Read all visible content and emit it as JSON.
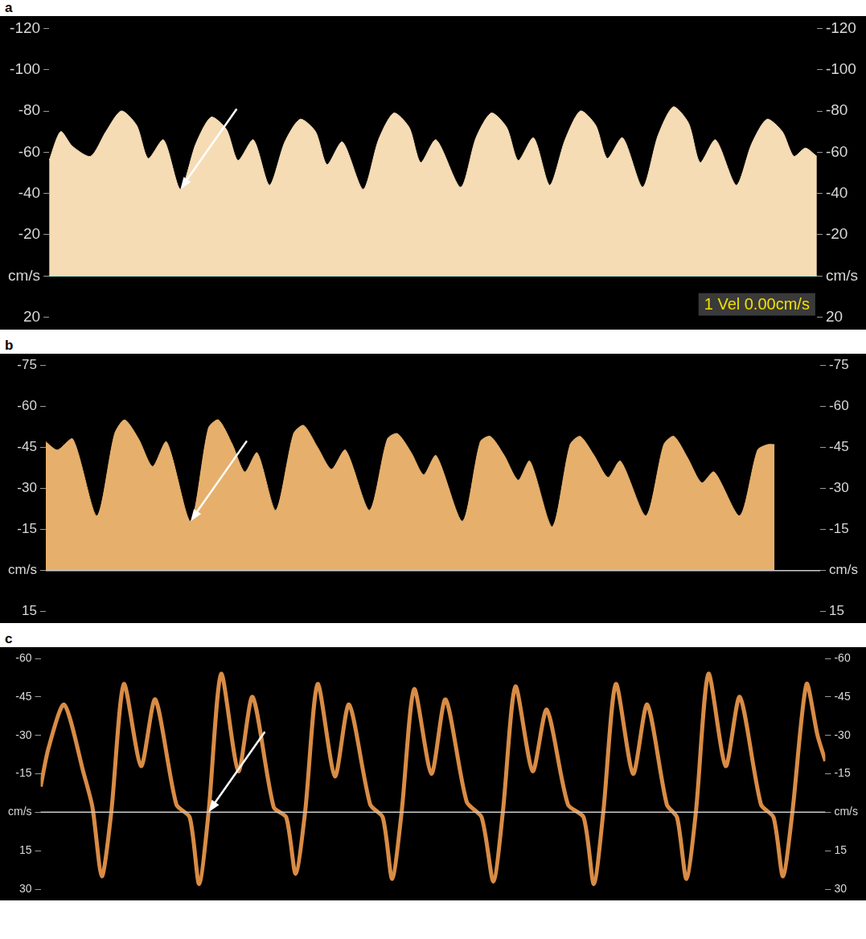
{
  "chart_data": [
    {
      "panel": "a",
      "type": "area",
      "color": "#f6dcb4",
      "tick_labels": "y",
      "grid": false,
      "annotations": [
        "1 Vel 0.00cm/s"
      ],
      "xlim": [
        0,
        100
      ],
      "ylim": [
        -120,
        20
      ],
      "yticks": [
        -120,
        -100,
        -80,
        -60,
        -40,
        -20,
        {
          "value": 0,
          "label": "cm/s"
        },
        20
      ],
      "x": [
        0,
        1.5,
        3.0,
        5.4,
        7.4,
        9.4,
        11.4,
        12.9,
        14.9,
        17.1,
        19.1,
        21.1,
        23.1,
        24.6,
        26.6,
        28.7,
        30.7,
        32.7,
        34.7,
        36.2,
        38.2,
        40.9,
        42.9,
        44.9,
        46.9,
        48.4,
        50.4,
        53.6,
        55.6,
        57.6,
        59.6,
        61.1,
        63.1,
        65.2,
        67.2,
        69.2,
        71.2,
        72.7,
        74.7,
        77.3,
        79.3,
        81.3,
        83.3,
        84.8,
        86.8,
        89.5,
        91.5,
        93.5,
        95.5,
        97.0,
        98.5,
        100
      ],
      "values": [
        -56,
        -70,
        -63,
        -58,
        -70,
        -80,
        -73,
        -57,
        -66,
        -42,
        -64,
        -77,
        -71,
        -56,
        -66,
        -44,
        -65,
        -76,
        -70,
        -54,
        -65,
        -42,
        -66,
        -79,
        -72,
        -55,
        -66,
        -43,
        -67,
        -79,
        -72,
        -56,
        -67,
        -44,
        -66,
        -80,
        -73,
        -57,
        -67,
        -43,
        -68,
        -82,
        -74,
        -55,
        -66,
        -44,
        -64,
        -76,
        -70,
        -58,
        -62,
        -58
      ]
    },
    {
      "panel": "b",
      "type": "area",
      "color": "#e6b06c",
      "tick_labels": "y",
      "grid": false,
      "xlim": [
        0,
        100
      ],
      "ylim": [
        -75,
        15
      ],
      "yticks": [
        -75,
        -60,
        -45,
        -30,
        -15,
        {
          "value": 0,
          "label": "cm/s"
        },
        15
      ],
      "x": [
        0,
        1.5,
        3.5,
        6.6,
        8.9,
        10.2,
        12.0,
        13.8,
        15.6,
        18.7,
        21.0,
        22.3,
        24.1,
        25.7,
        27.3,
        29.7,
        32.0,
        33.3,
        35.1,
        36.9,
        38.7,
        41.8,
        44.1,
        45.4,
        47.2,
        48.8,
        50.4,
        53.8,
        56.1,
        57.4,
        59.2,
        61.0,
        62.5,
        65.4,
        67.7,
        69.0,
        70.8,
        72.6,
        74.2,
        77.5,
        79.8,
        81.1,
        82.9,
        84.7,
        86.3,
        89.6,
        91.9,
        93.2,
        94.1
      ],
      "values": [
        -47,
        -44,
        -48,
        -20,
        -50,
        -55,
        -48,
        -38,
        -47,
        -18,
        -52,
        -55,
        -46,
        -36,
        -43,
        -22,
        -50,
        -53,
        -45,
        -37,
        -44,
        -22,
        -48,
        -50,
        -43,
        -35,
        -42,
        -18,
        -47,
        -49,
        -42,
        -33,
        -40,
        -16,
        -46,
        -49,
        -42,
        -34,
        -40,
        -20,
        -46,
        -49,
        -41,
        -32,
        -36,
        -20,
        -44,
        -46,
        -46
      ]
    },
    {
      "panel": "c",
      "type": "line",
      "color": "#d98c45",
      "tick_labels": "y",
      "grid": false,
      "xlim": [
        0,
        100
      ],
      "ylim": [
        -60,
        30
      ],
      "yticks": [
        -60,
        -45,
        -30,
        -15,
        {
          "value": 0,
          "label": "cm/s"
        },
        15,
        30
      ],
      "x": [
        0,
        1.0,
        3.0,
        5.5,
        6.6,
        7.8,
        9.0,
        10.6,
        12.8,
        14.6,
        17.3,
        19.0,
        20.2,
        21.4,
        23.0,
        25.2,
        27.0,
        29.7,
        31.3,
        32.5,
        33.7,
        35.3,
        37.5,
        39.3,
        42.0,
        43.6,
        44.8,
        46.0,
        47.6,
        49.8,
        51.6,
        54.3,
        56.2,
        57.7,
        58.9,
        60.5,
        62.7,
        64.5,
        67.2,
        69.2,
        70.5,
        71.7,
        73.3,
        75.5,
        77.3,
        79.8,
        81.1,
        82.3,
        83.5,
        85.1,
        87.3,
        89.1,
        91.8,
        93.4,
        94.6,
        95.8,
        97.6,
        99.0,
        100
      ],
      "values": [
        -10,
        -25,
        -42,
        -15,
        -2,
        25,
        0,
        -50,
        -18,
        -44,
        -3,
        2,
        28,
        0,
        -54,
        -16,
        -45,
        -2,
        2,
        24,
        0,
        -50,
        -14,
        -42,
        -3,
        2,
        26,
        0,
        -48,
        -15,
        -44,
        -4,
        2,
        27,
        0,
        -49,
        -16,
        -40,
        -3,
        2,
        28,
        0,
        -50,
        -15,
        -42,
        -3,
        2,
        26,
        0,
        -54,
        -18,
        -45,
        -3,
        2,
        25,
        0,
        -50,
        -30,
        -20
      ]
    }
  ]
}
